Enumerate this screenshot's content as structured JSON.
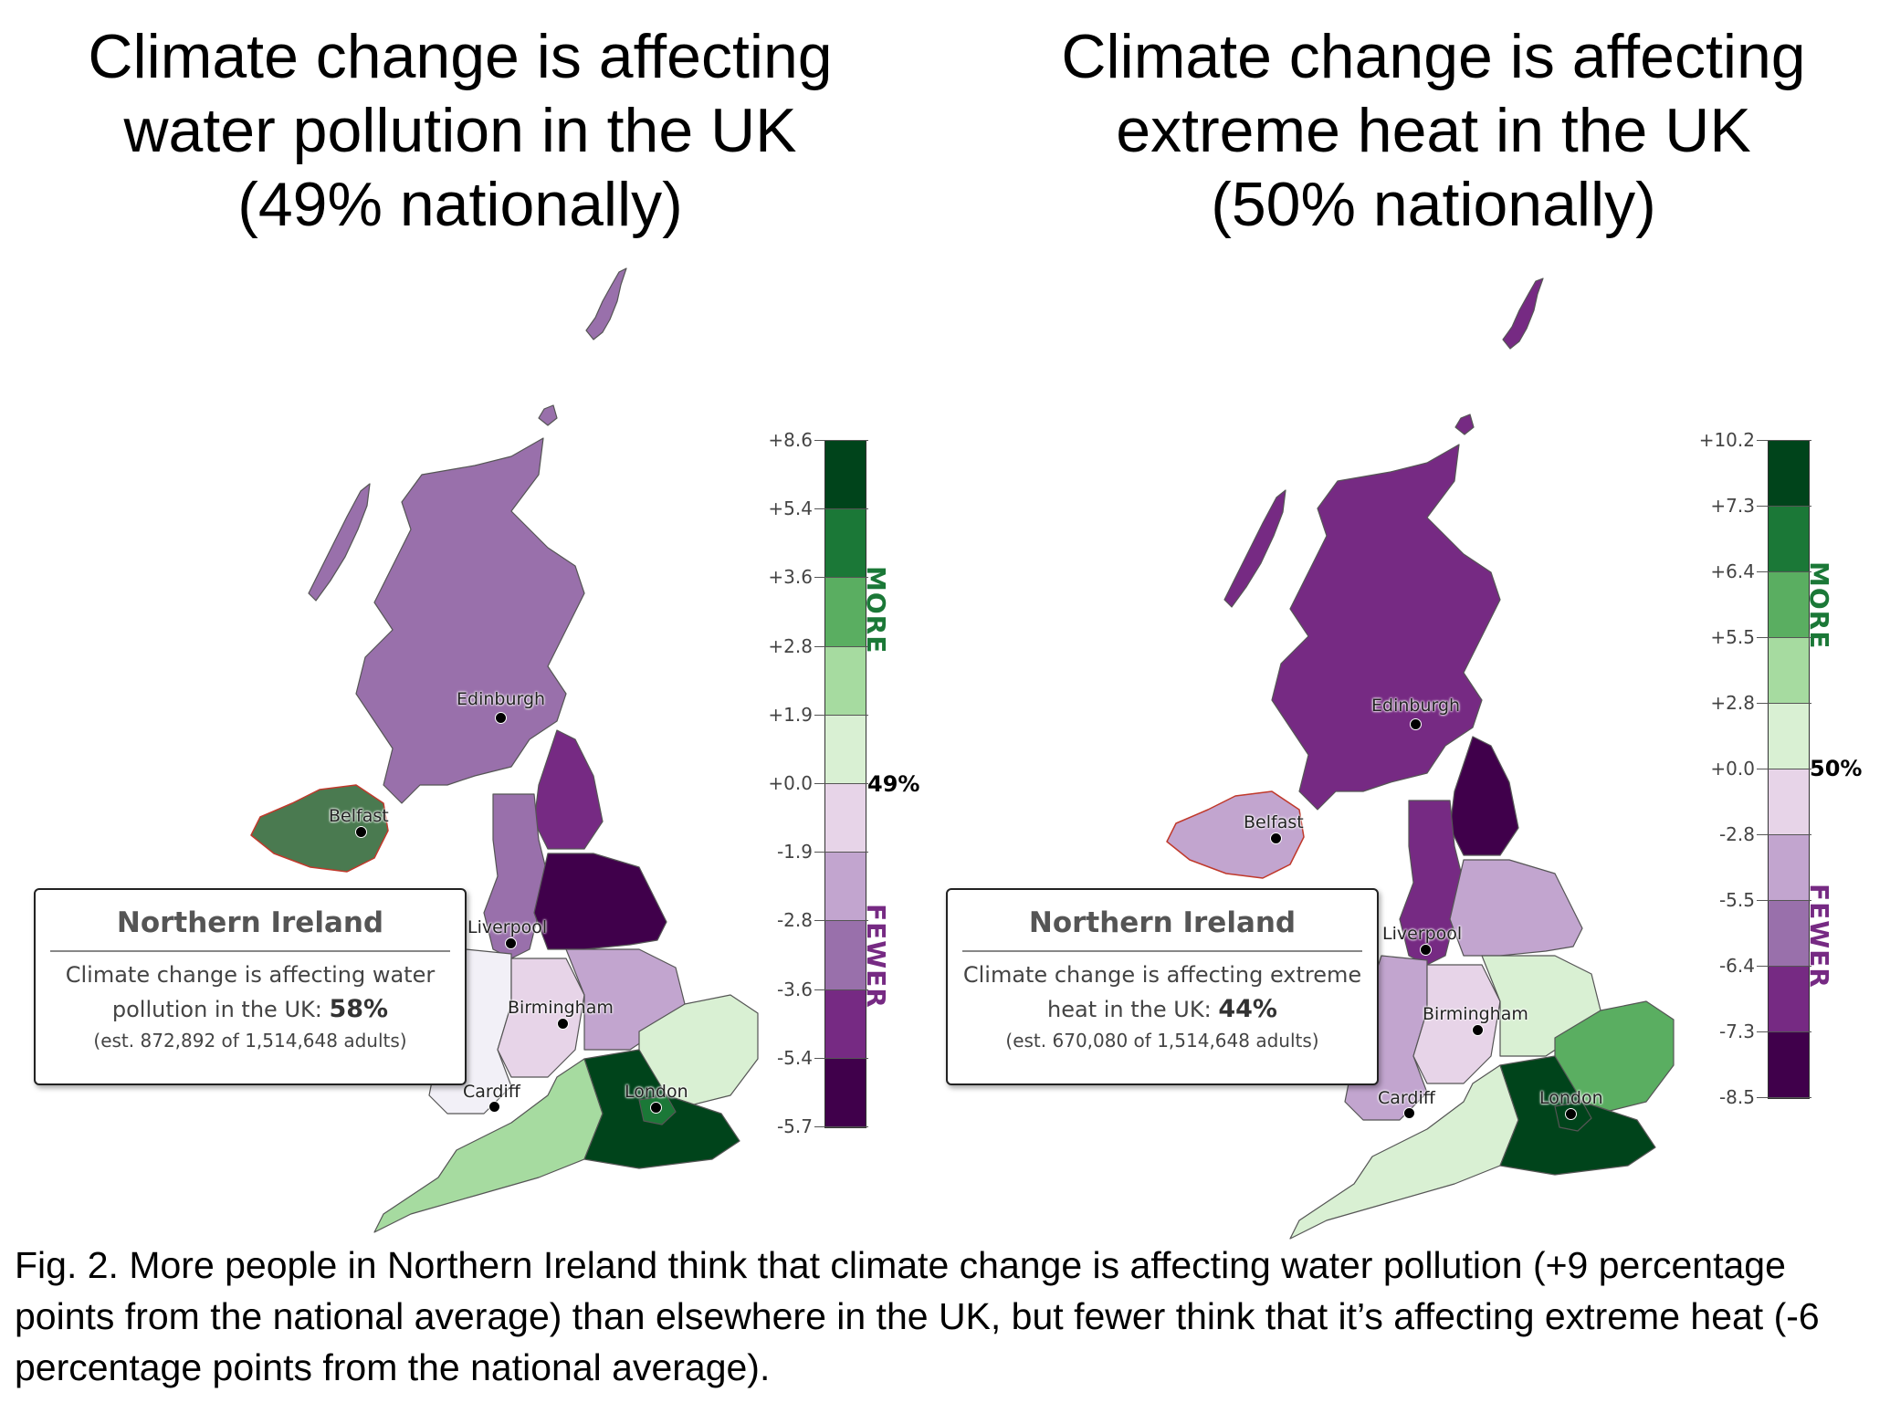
{
  "panels": [
    {
      "title_lines": [
        "Climate change is affecting",
        "water pollution in the UK",
        "(49% nationally)"
      ],
      "legend": {
        "ticks": [
          "+8.6",
          "+5.4",
          "+3.6",
          "+2.8",
          "+1.9",
          "+0.0",
          "-1.9",
          "-2.8",
          "-3.6",
          "-5.4",
          "-5.7"
        ],
        "national": "49%",
        "more_label": "MORE",
        "fewer_label": "FEWER"
      },
      "tooltip": {
        "region": "Northern Ireland",
        "text_line1": "Climate change is affecting water",
        "text_line2": "pollution in the UK:",
        "value": "58%",
        "estimate": "(est. 872,892 of 1,514,648 adults)"
      },
      "cities": [
        "Edinburgh",
        "Belfast",
        "Liverpool",
        "Birmingham",
        "Cardiff",
        "London"
      ]
    },
    {
      "title_lines": [
        "Climate change is affecting",
        "extreme heat in the UK",
        "(50% nationally)"
      ],
      "legend": {
        "ticks": [
          "+10.2",
          "+7.3",
          "+6.4",
          "+5.5",
          "+2.8",
          "+0.0",
          "-2.8",
          "-5.5",
          "-6.4",
          "-7.3",
          "-8.5"
        ],
        "national": "50%",
        "more_label": "MORE",
        "fewer_label": "FEWER"
      },
      "tooltip": {
        "region": "Northern Ireland",
        "text_line1": "Climate change is affecting extreme",
        "text_line2": "heat in the UK:",
        "value": "44%",
        "estimate": "(est. 670,080 of 1,514,648 adults)"
      },
      "cities": [
        "Edinburgh",
        "Belfast",
        "Liverpool",
        "Birmingham",
        "Cardiff",
        "London"
      ]
    }
  ],
  "legend_colors": [
    "#00441b",
    "#1b7837",
    "#5aae61",
    "#a6dba0",
    "#d9f0d3",
    "#e7d4e8",
    "#c2a5cf",
    "#9970ab",
    "#762a83",
    "#40004b"
  ],
  "caption": {
    "label": "Fig. 2",
    "text": ". More people in Northern Ireland think that climate change is affecting water pollution (+9 percentage points from the national average) than elsewhere in the UK, but fewer think that it’s affecting extreme heat (-6 percentage points from the national average)."
  }
}
